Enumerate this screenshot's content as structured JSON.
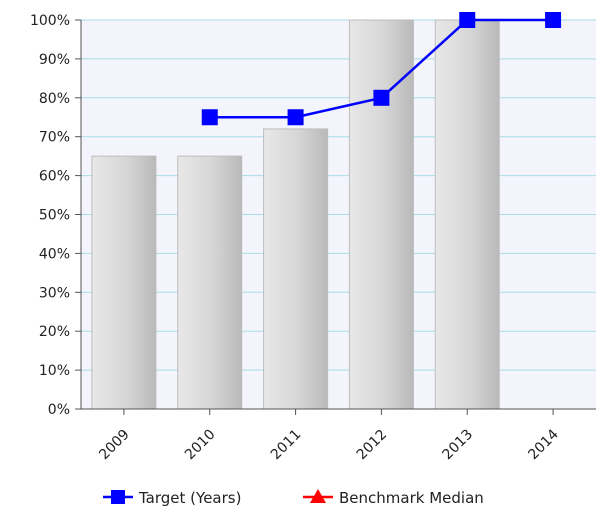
{
  "chart_data": {
    "type": "bar",
    "categories": [
      "2009",
      "2010",
      "2011",
      "2012",
      "2013",
      "2014"
    ],
    "ylim": [
      0,
      100
    ],
    "y_ticks": [
      "0%",
      "10%",
      "20%",
      "30%",
      "40%",
      "50%",
      "60%",
      "70%",
      "80%",
      "90%",
      "100%"
    ],
    "y_tick_values": [
      0,
      10,
      20,
      30,
      40,
      50,
      60,
      70,
      80,
      90,
      100
    ],
    "grid": true,
    "legend_position": "bottom",
    "bars": {
      "values": [
        65,
        65,
        72,
        100,
        100,
        null
      ],
      "color": "#d4d4d4"
    },
    "series": [
      {
        "name": "Target (Years)",
        "type": "line",
        "marker": "square",
        "color": "#0000ff",
        "values": [
          null,
          75,
          75,
          80,
          100,
          100
        ]
      },
      {
        "name": "Benchmark Median",
        "type": "line",
        "marker": "triangle",
        "color": "#ff0000",
        "values": [
          null,
          null,
          null,
          null,
          null,
          null
        ]
      }
    ]
  }
}
